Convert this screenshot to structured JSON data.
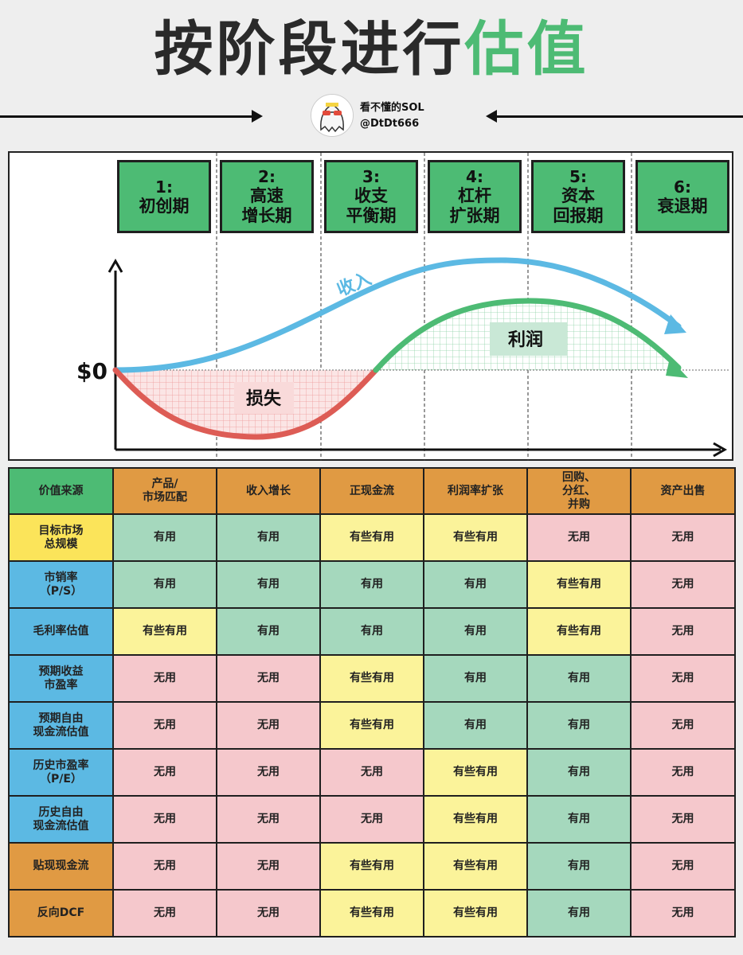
{
  "title": {
    "part1": "按阶段进行",
    "part2": "估值"
  },
  "author": {
    "name": "看不懂的SOL",
    "handle": "@DtDt666"
  },
  "stages": [
    {
      "num": "1:",
      "name": "初创期"
    },
    {
      "num": "2:",
      "name": "高速\n增长期"
    },
    {
      "num": "3:",
      "name": "收支\n平衡期"
    },
    {
      "num": "4:",
      "name": "杠杆\n扩张期"
    },
    {
      "num": "5:",
      "name": "资本\n回报期"
    },
    {
      "num": "6:",
      "name": "衰退期"
    }
  ],
  "chart": {
    "zero_label": "$0",
    "revenue_label": "收入",
    "profit_label": "利润",
    "loss_label": "损失",
    "colors": {
      "revenue": "#5cb9e3",
      "profit": "#4dbb74",
      "loss": "#dd5c55"
    }
  },
  "table": {
    "header": [
      "价值来源",
      "产品/\n市场匹配",
      "收入增长",
      "正现金流",
      "利润率扩张",
      "回购、\n分红、\n并购",
      "资产出售"
    ],
    "rows": [
      {
        "label": "目标市场\n总规模",
        "label_color": "yellow",
        "cells": [
          "有用",
          "有用",
          "有些有用",
          "有些有用",
          "无用",
          "无用"
        ]
      },
      {
        "label": "市销率\n（P/S）",
        "label_color": "blue",
        "cells": [
          "有用",
          "有用",
          "有用",
          "有用",
          "有些有用",
          "无用"
        ]
      },
      {
        "label": "毛利率估值",
        "label_color": "blue",
        "cells": [
          "有些有用",
          "有用",
          "有用",
          "有用",
          "有些有用",
          "无用"
        ]
      },
      {
        "label": "预期收益\n市盈率",
        "label_color": "blue",
        "cells": [
          "无用",
          "无用",
          "有些有用",
          "有用",
          "有用",
          "无用"
        ]
      },
      {
        "label": "预期自由\n现金流估值",
        "label_color": "blue",
        "cells": [
          "无用",
          "无用",
          "有些有用",
          "有用",
          "有用",
          "无用"
        ]
      },
      {
        "label": "历史市盈率\n（P/E）",
        "label_color": "blue",
        "cells": [
          "无用",
          "无用",
          "无用",
          "有些有用",
          "有用",
          "无用"
        ]
      },
      {
        "label": "历史自由\n现金流估值",
        "label_color": "blue",
        "cells": [
          "无用",
          "无用",
          "无用",
          "有些有用",
          "有用",
          "无用"
        ]
      },
      {
        "label": "贴现现金流",
        "label_color": "orange",
        "cells": [
          "无用",
          "无用",
          "有些有用",
          "有些有用",
          "有用",
          "无用"
        ]
      },
      {
        "label": "反向DCF",
        "label_color": "orange",
        "cells": [
          "无用",
          "无用",
          "有些有用",
          "有些有用",
          "有用",
          "无用"
        ]
      }
    ]
  }
}
